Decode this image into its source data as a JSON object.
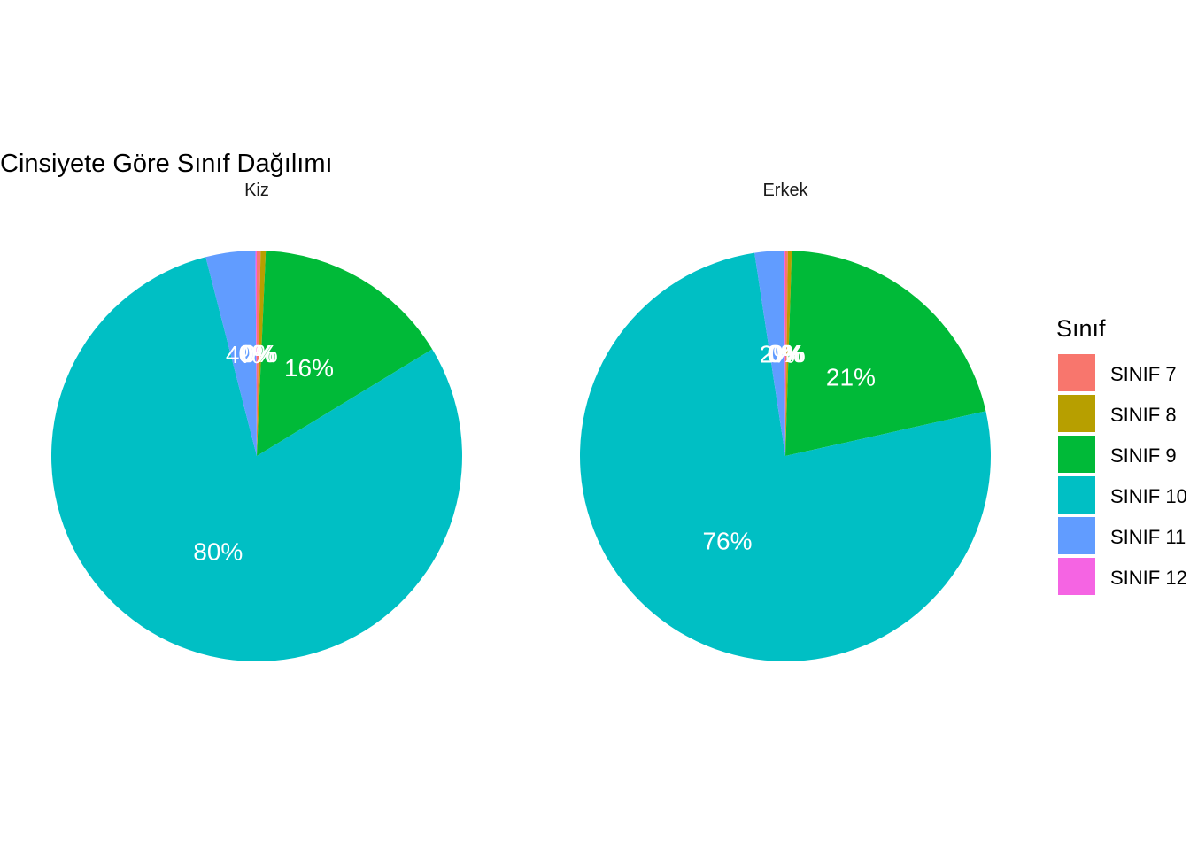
{
  "chart_data": {
    "type": "pie",
    "title": "Cinsiyete Göre Sınıf Dağılımı",
    "categories": [
      "SINIF 7",
      "SINIF 8",
      "SINIF 9",
      "SINIF 10",
      "SINIF 11",
      "SINIF 12"
    ],
    "colors": [
      "#F8766D",
      "#B79F00",
      "#00BA38",
      "#00BFC4",
      "#619CFF",
      "#F564E3"
    ],
    "legend": {
      "title": "Sınıf",
      "position": "right"
    },
    "panels": [
      {
        "name": "Kiz",
        "values": [
          0.3,
          0.4,
          15.6,
          79.7,
          3.9,
          0.1
        ],
        "labels": [
          "0%",
          "0%",
          "16%",
          "80%",
          "4%",
          "0%"
        ]
      },
      {
        "name": "Erkek",
        "values": [
          0.2,
          0.3,
          21.0,
          76.1,
          2.3,
          0.1
        ],
        "labels": [
          "0%",
          "0%",
          "21%",
          "76%",
          "2%",
          "0%"
        ]
      }
    ]
  }
}
